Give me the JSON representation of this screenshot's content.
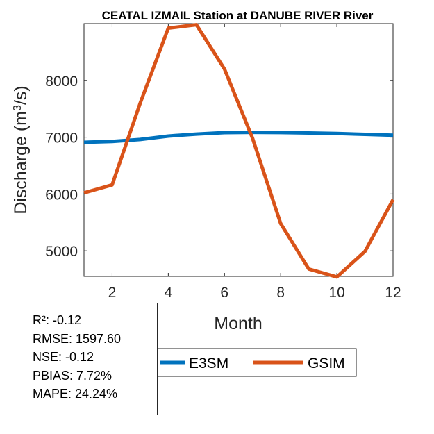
{
  "chart_data": {
    "type": "line",
    "title": "CEATAL IZMAIL  Station at  DANUBE RIVER  River",
    "xlabel": "Month",
    "ylabel": "Discharge (m³/s)",
    "ylabel_parts": {
      "base": "Discharge (m",
      "sup": "3",
      "end": "/s)"
    },
    "xlim": [
      1,
      12
    ],
    "ylim": [
      4550,
      9000
    ],
    "xticks": [
      2,
      4,
      6,
      8,
      10,
      12
    ],
    "yticks": [
      5000,
      6000,
      7000,
      8000
    ],
    "x": [
      1,
      2,
      3,
      4,
      5,
      6,
      7,
      8,
      9,
      10,
      11,
      12
    ],
    "series": [
      {
        "name": "E3SM",
        "color": "#0072BD",
        "values": [
          6910,
          6925,
          6960,
          7020,
          7055,
          7080,
          7085,
          7082,
          7075,
          7065,
          7050,
          7035
        ]
      },
      {
        "name": "GSIM",
        "color": "#D95319",
        "values": [
          6020,
          6160,
          7600,
          8920,
          8980,
          8200,
          6980,
          5480,
          4680,
          4540,
          4990,
          5900
        ]
      }
    ],
    "legend": [
      "E3SM",
      "GSIM"
    ],
    "legend_position": "bottom-center"
  },
  "stats": {
    "r2": "R²: -0.12",
    "rmse": "RMSE: 1597.60",
    "nse": "NSE: -0.12",
    "pbias": "PBIAS: 7.72%",
    "mape": "MAPE: 24.24%"
  }
}
